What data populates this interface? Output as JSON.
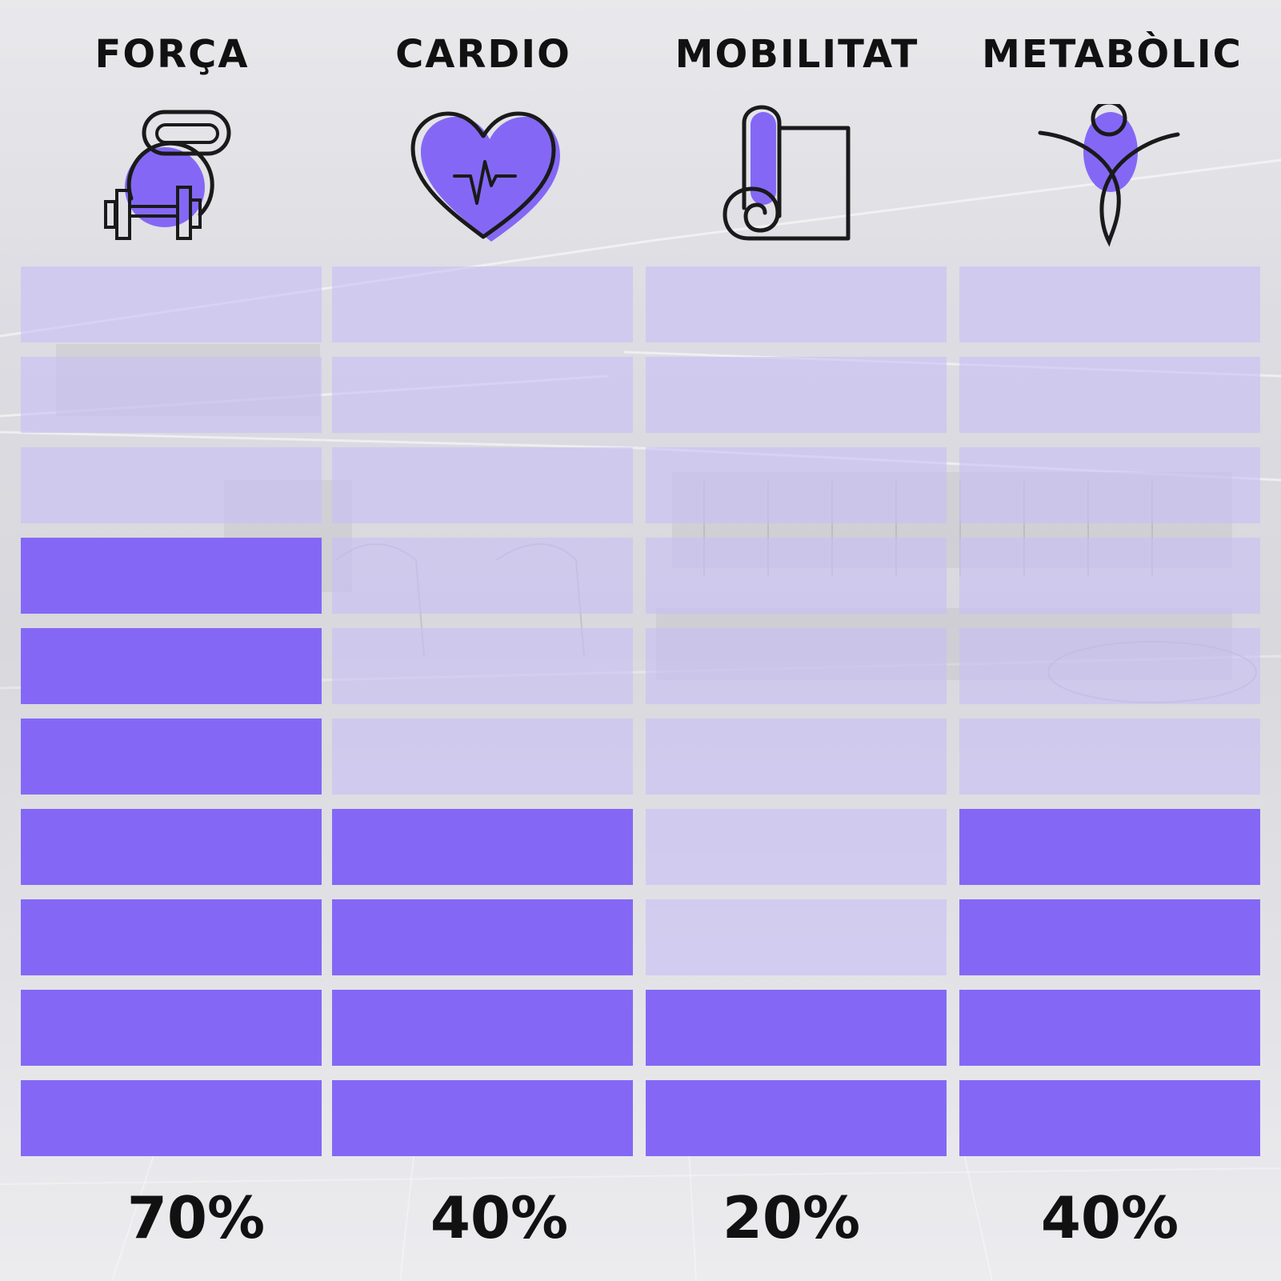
{
  "colors": {
    "filled": "#8468f5",
    "empty": "rgba(200,190,245,0.62)",
    "ink": "#1a1a1a"
  },
  "chart_data": {
    "type": "bar",
    "orientation": "vertical-segmented",
    "segments_total": 10,
    "categories": [
      "FORÇA",
      "CARDIO",
      "MOBILITAT",
      "METABÒLIC"
    ],
    "icons": [
      "kettlebell-dumbbell-icon",
      "heart-pulse-icon",
      "yoga-mat-icon",
      "body-figure-icon"
    ],
    "values": [
      70,
      40,
      20,
      40
    ],
    "value_labels": [
      "70%",
      "40%",
      "20%",
      "40%"
    ],
    "ylim": [
      0,
      100
    ]
  }
}
